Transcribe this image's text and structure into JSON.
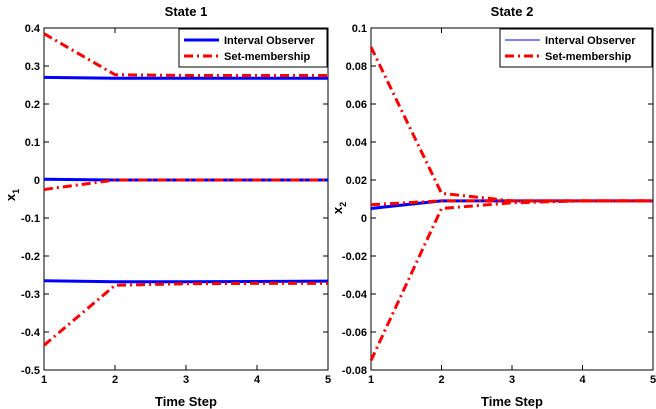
{
  "chart_data": [
    {
      "type": "line",
      "title": "State 1",
      "xlabel": "Time Step",
      "ylabel": "x",
      "ylabel_sub": "1",
      "xlim": [
        1,
        5
      ],
      "ylim": [
        -0.5,
        0.4
      ],
      "xticks": [
        "1",
        "2",
        "3",
        "4",
        "5"
      ],
      "yticks": [
        "0.4",
        "0.3",
        "0.2",
        "0.1",
        "0",
        "-0.1",
        "-0.2",
        "-0.3",
        "-0.4",
        "-0.5"
      ],
      "grid": false,
      "legend": {
        "placement": "top-right",
        "entries": [
          "Interval Observer",
          "Set-membership"
        ]
      },
      "series": [
        {
          "name": "Interval Observer",
          "x": [
            1,
            2,
            3,
            4,
            5
          ],
          "y": [
            0.27,
            0.268,
            0.268,
            0.268,
            0.268
          ],
          "color": "#0000ff",
          "dash": "solid",
          "width": 3
        },
        {
          "name": "Interval Observer",
          "x": [
            1,
            2,
            3,
            4,
            5
          ],
          "y": [
            0.002,
            0.0,
            0.0,
            0.0,
            0.0
          ],
          "color": "#0000ff",
          "dash": "solid",
          "width": 3
        },
        {
          "name": "Interval Observer",
          "x": [
            1,
            2,
            3,
            4,
            5
          ],
          "y": [
            -0.265,
            -0.268,
            -0.268,
            -0.267,
            -0.266
          ],
          "color": "#0000ff",
          "dash": "solid",
          "width": 3
        },
        {
          "name": "Set-membership",
          "x": [
            1,
            2,
            3,
            4,
            5
          ],
          "y": [
            0.385,
            0.277,
            0.275,
            0.275,
            0.275
          ],
          "color": "#ff0000",
          "dash": "dashdot",
          "width": 3
        },
        {
          "name": "Set-membership",
          "x": [
            1,
            2,
            3,
            4,
            5
          ],
          "y": [
            -0.025,
            0.0,
            0.0,
            0.0,
            0.0
          ],
          "color": "#ff0000",
          "dash": "dashdot",
          "width": 3
        },
        {
          "name": "Set-membership",
          "x": [
            1,
            2,
            3,
            4,
            5
          ],
          "y": [
            -0.435,
            -0.277,
            -0.273,
            -0.272,
            -0.272
          ],
          "color": "#ff0000",
          "dash": "dashdot",
          "width": 3
        }
      ]
    },
    {
      "type": "line",
      "title": "State 2",
      "xlabel": "Time Step",
      "ylabel": "x",
      "ylabel_sub": "2",
      "xlim": [
        1,
        5
      ],
      "ylim": [
        -0.08,
        0.1
      ],
      "xticks": [
        "1",
        "2",
        "3",
        "4",
        "5"
      ],
      "yticks": [
        "0.1",
        "0.08",
        "0.06",
        "0.04",
        "0.02",
        "0",
        "-0.02",
        "-0.04",
        "-0.06",
        "-0.08"
      ],
      "grid": false,
      "legend": {
        "placement": "top-right",
        "entries": [
          "Interval Observer",
          "Set-membership"
        ]
      },
      "series": [
        {
          "name": "Interval Observer",
          "x": [
            1,
            2,
            3,
            4,
            5
          ],
          "y": [
            0.005,
            0.009,
            0.009,
            0.009,
            0.009
          ],
          "color": "#0000ff",
          "dash": "solid",
          "width": 3
        },
        {
          "name": "Set-membership",
          "x": [
            1,
            2,
            3,
            4,
            5
          ],
          "y": [
            0.09,
            0.013,
            0.009,
            0.009,
            0.009
          ],
          "color": "#ff0000",
          "dash": "dashdot",
          "width": 3
        },
        {
          "name": "Set-membership",
          "x": [
            1,
            2,
            3,
            4,
            5
          ],
          "y": [
            0.007,
            0.009,
            0.009,
            0.009,
            0.009
          ],
          "color": "#ff0000",
          "dash": "dashdot",
          "width": 3
        },
        {
          "name": "Set-membership",
          "x": [
            1,
            2,
            3,
            4,
            5
          ],
          "y": [
            -0.075,
            0.005,
            0.008,
            0.009,
            0.009
          ],
          "color": "#ff0000",
          "dash": "dashdot",
          "width": 3
        }
      ]
    }
  ]
}
